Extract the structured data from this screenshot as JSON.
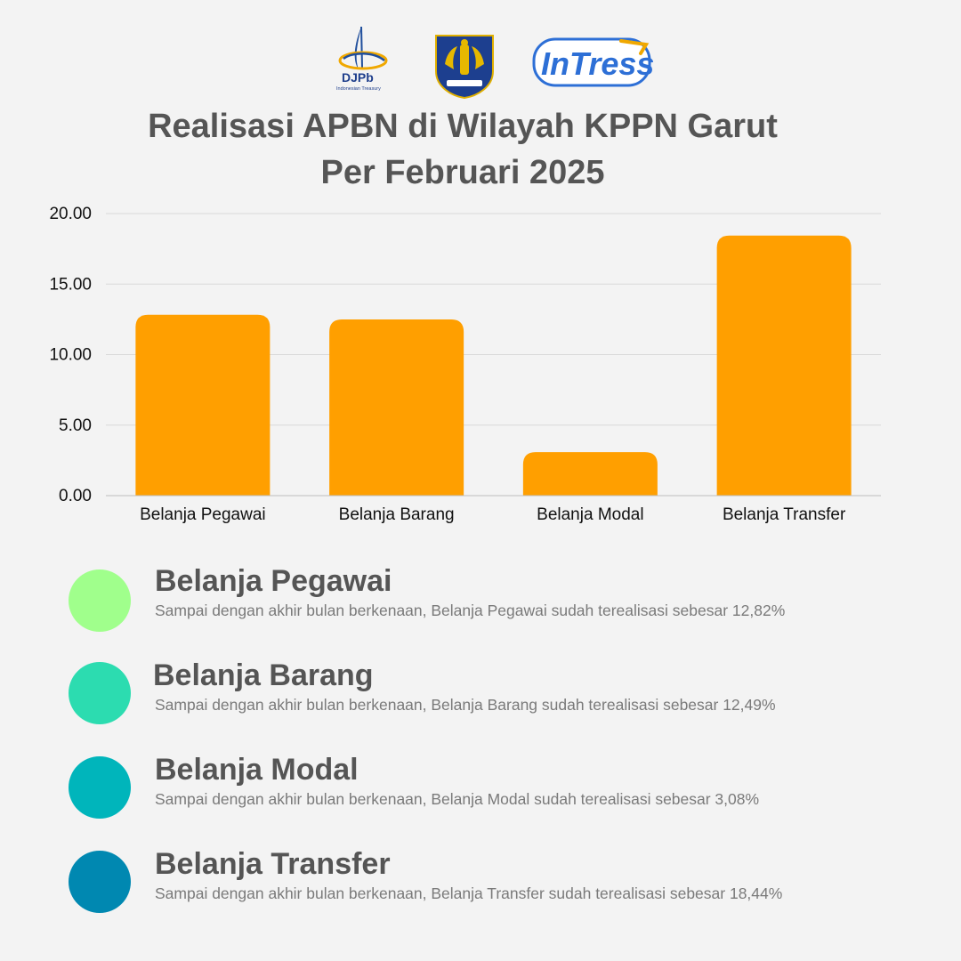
{
  "header": {
    "djpb_logo": {
      "name": "DJPb",
      "tagline": "Indonesian Treasury"
    },
    "kemenkeu_logo": {
      "name": "kemenkeu-emblem"
    },
    "intress_logo": {
      "name": "InTress"
    },
    "title_line1": "Realisasi APBN di Wilayah KPPN Garut",
    "title_line2": "Per Februari 2025"
  },
  "colors": {
    "bar": "#ff9f00",
    "grid": "#d9d9d9",
    "axis_text": "#111111"
  },
  "chart_data": {
    "type": "bar",
    "categories": [
      "Belanja Pegawai",
      "Belanja Barang",
      "Belanja Modal",
      "Belanja Transfer"
    ],
    "values": [
      12.82,
      12.49,
      3.08,
      18.44
    ],
    "yticks": [
      "0.00",
      "5.00",
      "10.00",
      "15.00",
      "20.00"
    ],
    "ylim": [
      0,
      20
    ],
    "grid": true,
    "title": "",
    "xlabel": "",
    "ylabel": ""
  },
  "legend": {
    "items": [
      {
        "title": "Belanja Pegawai",
        "desc": "Sampai dengan akhir bulan berkenaan, Belanja Pegawai sudah terealisasi sebesar 12,82%",
        "color": "#a0ff8c"
      },
      {
        "title": "Belanja Barang",
        "desc": "Sampai dengan akhir bulan berkenaan, Belanja Barang sudah terealisasi sebesar 12,49%",
        "color": "#2cdcb0"
      },
      {
        "title": "Belanja Modal",
        "desc": "Sampai dengan akhir bulan berkenaan, Belanja Modal sudah terealisasi sebesar 3,08%",
        "color": "#00b5bb"
      },
      {
        "title": "Belanja Transfer",
        "desc": "Sampai dengan akhir bulan berkenaan, Belanja Transfer sudah terealisasi sebesar 18,44%",
        "color": "#0088b1"
      }
    ]
  }
}
